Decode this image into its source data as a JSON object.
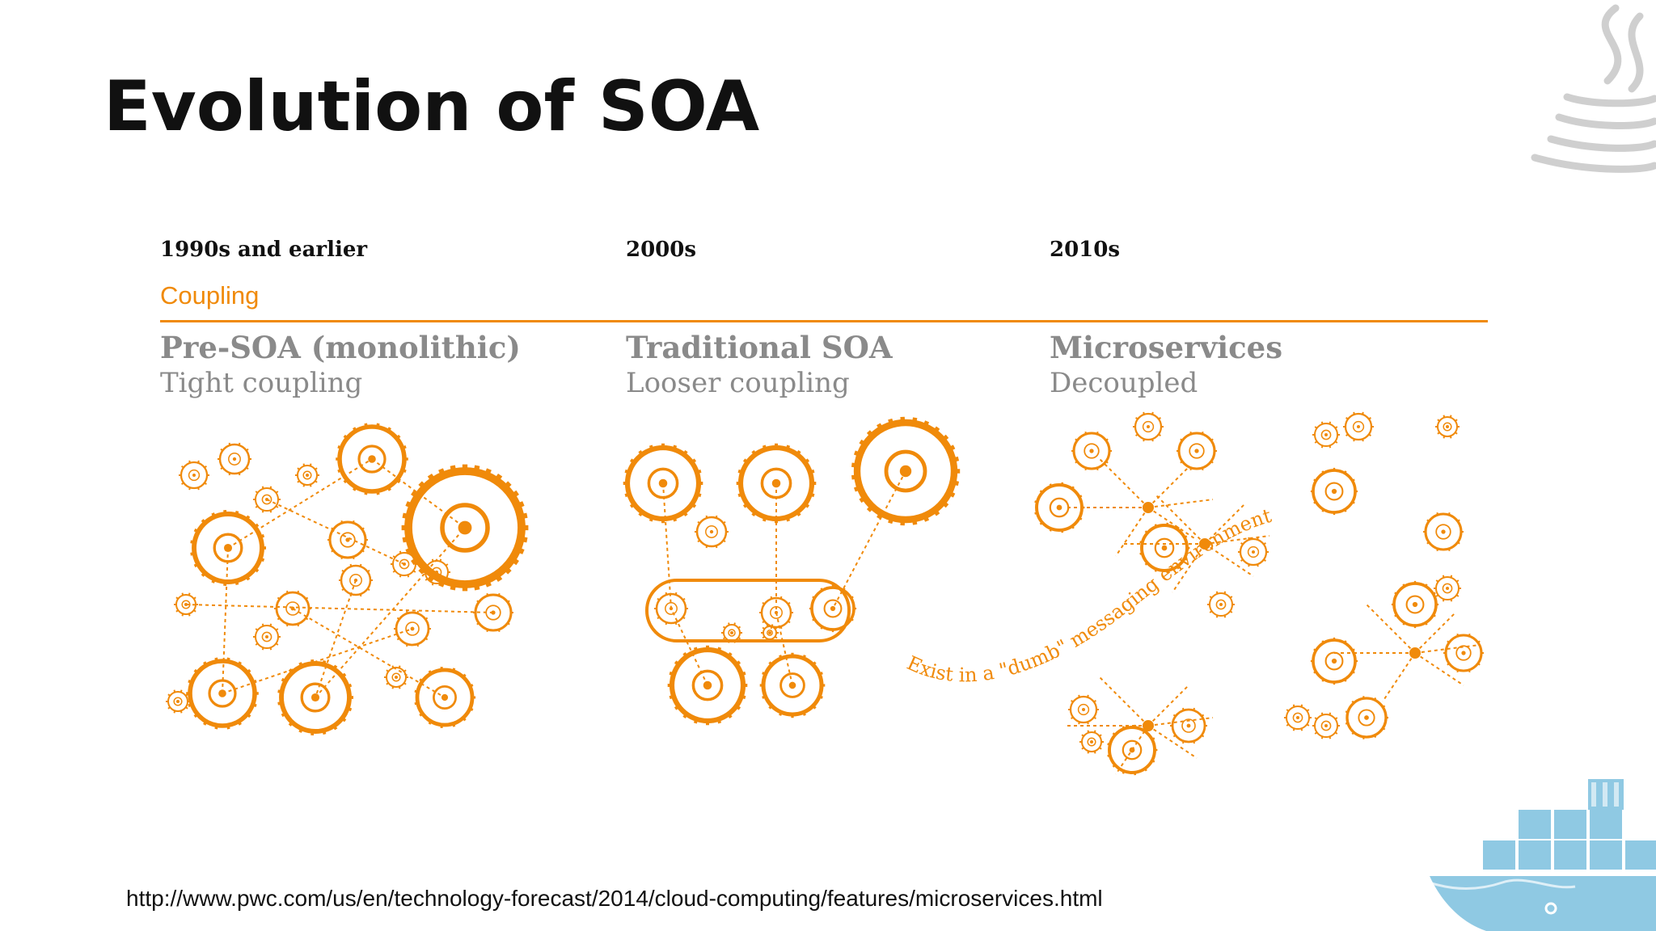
{
  "slide": {
    "title": "Evolution of SOA",
    "source_url": "http://www.pwc.com/us/en/technology-forecast/2014/cloud-computing/features/microservices.html"
  },
  "diagram": {
    "axis_label": "Coupling",
    "stages": [
      {
        "era": "1990s  and  earlier",
        "name": "Pre-SOA  (monolithic)",
        "coupling": "Tight coupling"
      },
      {
        "era": "2000s",
        "name": "Traditional  SOA",
        "coupling": "Looser coupling"
      },
      {
        "era": "2010s",
        "name": "Microservices",
        "coupling": "Decoupled"
      }
    ],
    "messaging_label": "Exist in a \"dumb\" messaging environment"
  },
  "colors": {
    "accent": "#f08a0a",
    "muted_text": "#8a8a8a",
    "java_logo": "#c8c8c8",
    "docker_blue": "#8fc9e3"
  },
  "icons": [
    "java-logo-icon",
    "docker-whale-icon"
  ]
}
